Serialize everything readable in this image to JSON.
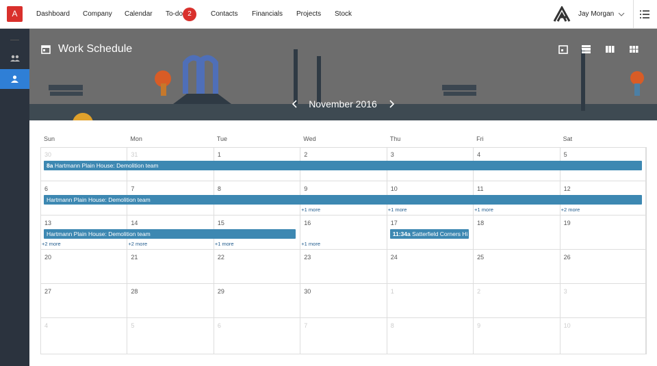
{
  "logo": "A",
  "nav": {
    "items": [
      "Dashboard",
      "Company",
      "Calendar",
      "To-do",
      "Contacts",
      "Financials",
      "Projects",
      "Stock"
    ],
    "badge": "2"
  },
  "user": "Jay Morgan",
  "title": "Work Schedule",
  "month": "November 2016",
  "weekdays": [
    "Sun",
    "Mon",
    "Tue",
    "Wed",
    "Thu",
    "Fri",
    "Sat"
  ],
  "weeks": [
    {
      "days": [
        30,
        31,
        1,
        2,
        3,
        4,
        5
      ],
      "events": [
        {
          "time": "8a",
          "title": "Hartmann Plain House: Demolition team"
        }
      ],
      "more": [
        null,
        null,
        null,
        null,
        null,
        null,
        null
      ]
    },
    {
      "days": [
        6,
        7,
        8,
        9,
        10,
        11,
        12
      ],
      "events": [
        {
          "title": "Hartmann Plain House: Demolition team"
        }
      ],
      "more": [
        null,
        null,
        null,
        "+1 more",
        "+1 more",
        "+1 more",
        "+2 more"
      ]
    },
    {
      "days": [
        13,
        14,
        15,
        16,
        17,
        18,
        19
      ],
      "events": [
        {
          "title": "Hartmann Plain House: Demolition team"
        },
        {
          "time": "11:34a",
          "title": "Satterfield Corners Hi"
        }
      ],
      "more": [
        "+2 more",
        "+2 more",
        "+1 more",
        "+1 more",
        null,
        null,
        null
      ]
    },
    {
      "days": [
        20,
        21,
        22,
        23,
        24,
        25,
        26
      ],
      "events": [],
      "more": [
        null,
        null,
        null,
        null,
        null,
        null,
        null
      ]
    },
    {
      "days": [
        27,
        28,
        29,
        30,
        1,
        2,
        3
      ],
      "events": [],
      "more": [
        null,
        null,
        null,
        null,
        null,
        null,
        null
      ]
    },
    {
      "days": [
        4,
        5,
        6,
        7,
        8,
        9,
        10
      ],
      "events": [],
      "more": [
        null,
        null,
        null,
        null,
        null,
        null,
        null
      ]
    }
  ]
}
